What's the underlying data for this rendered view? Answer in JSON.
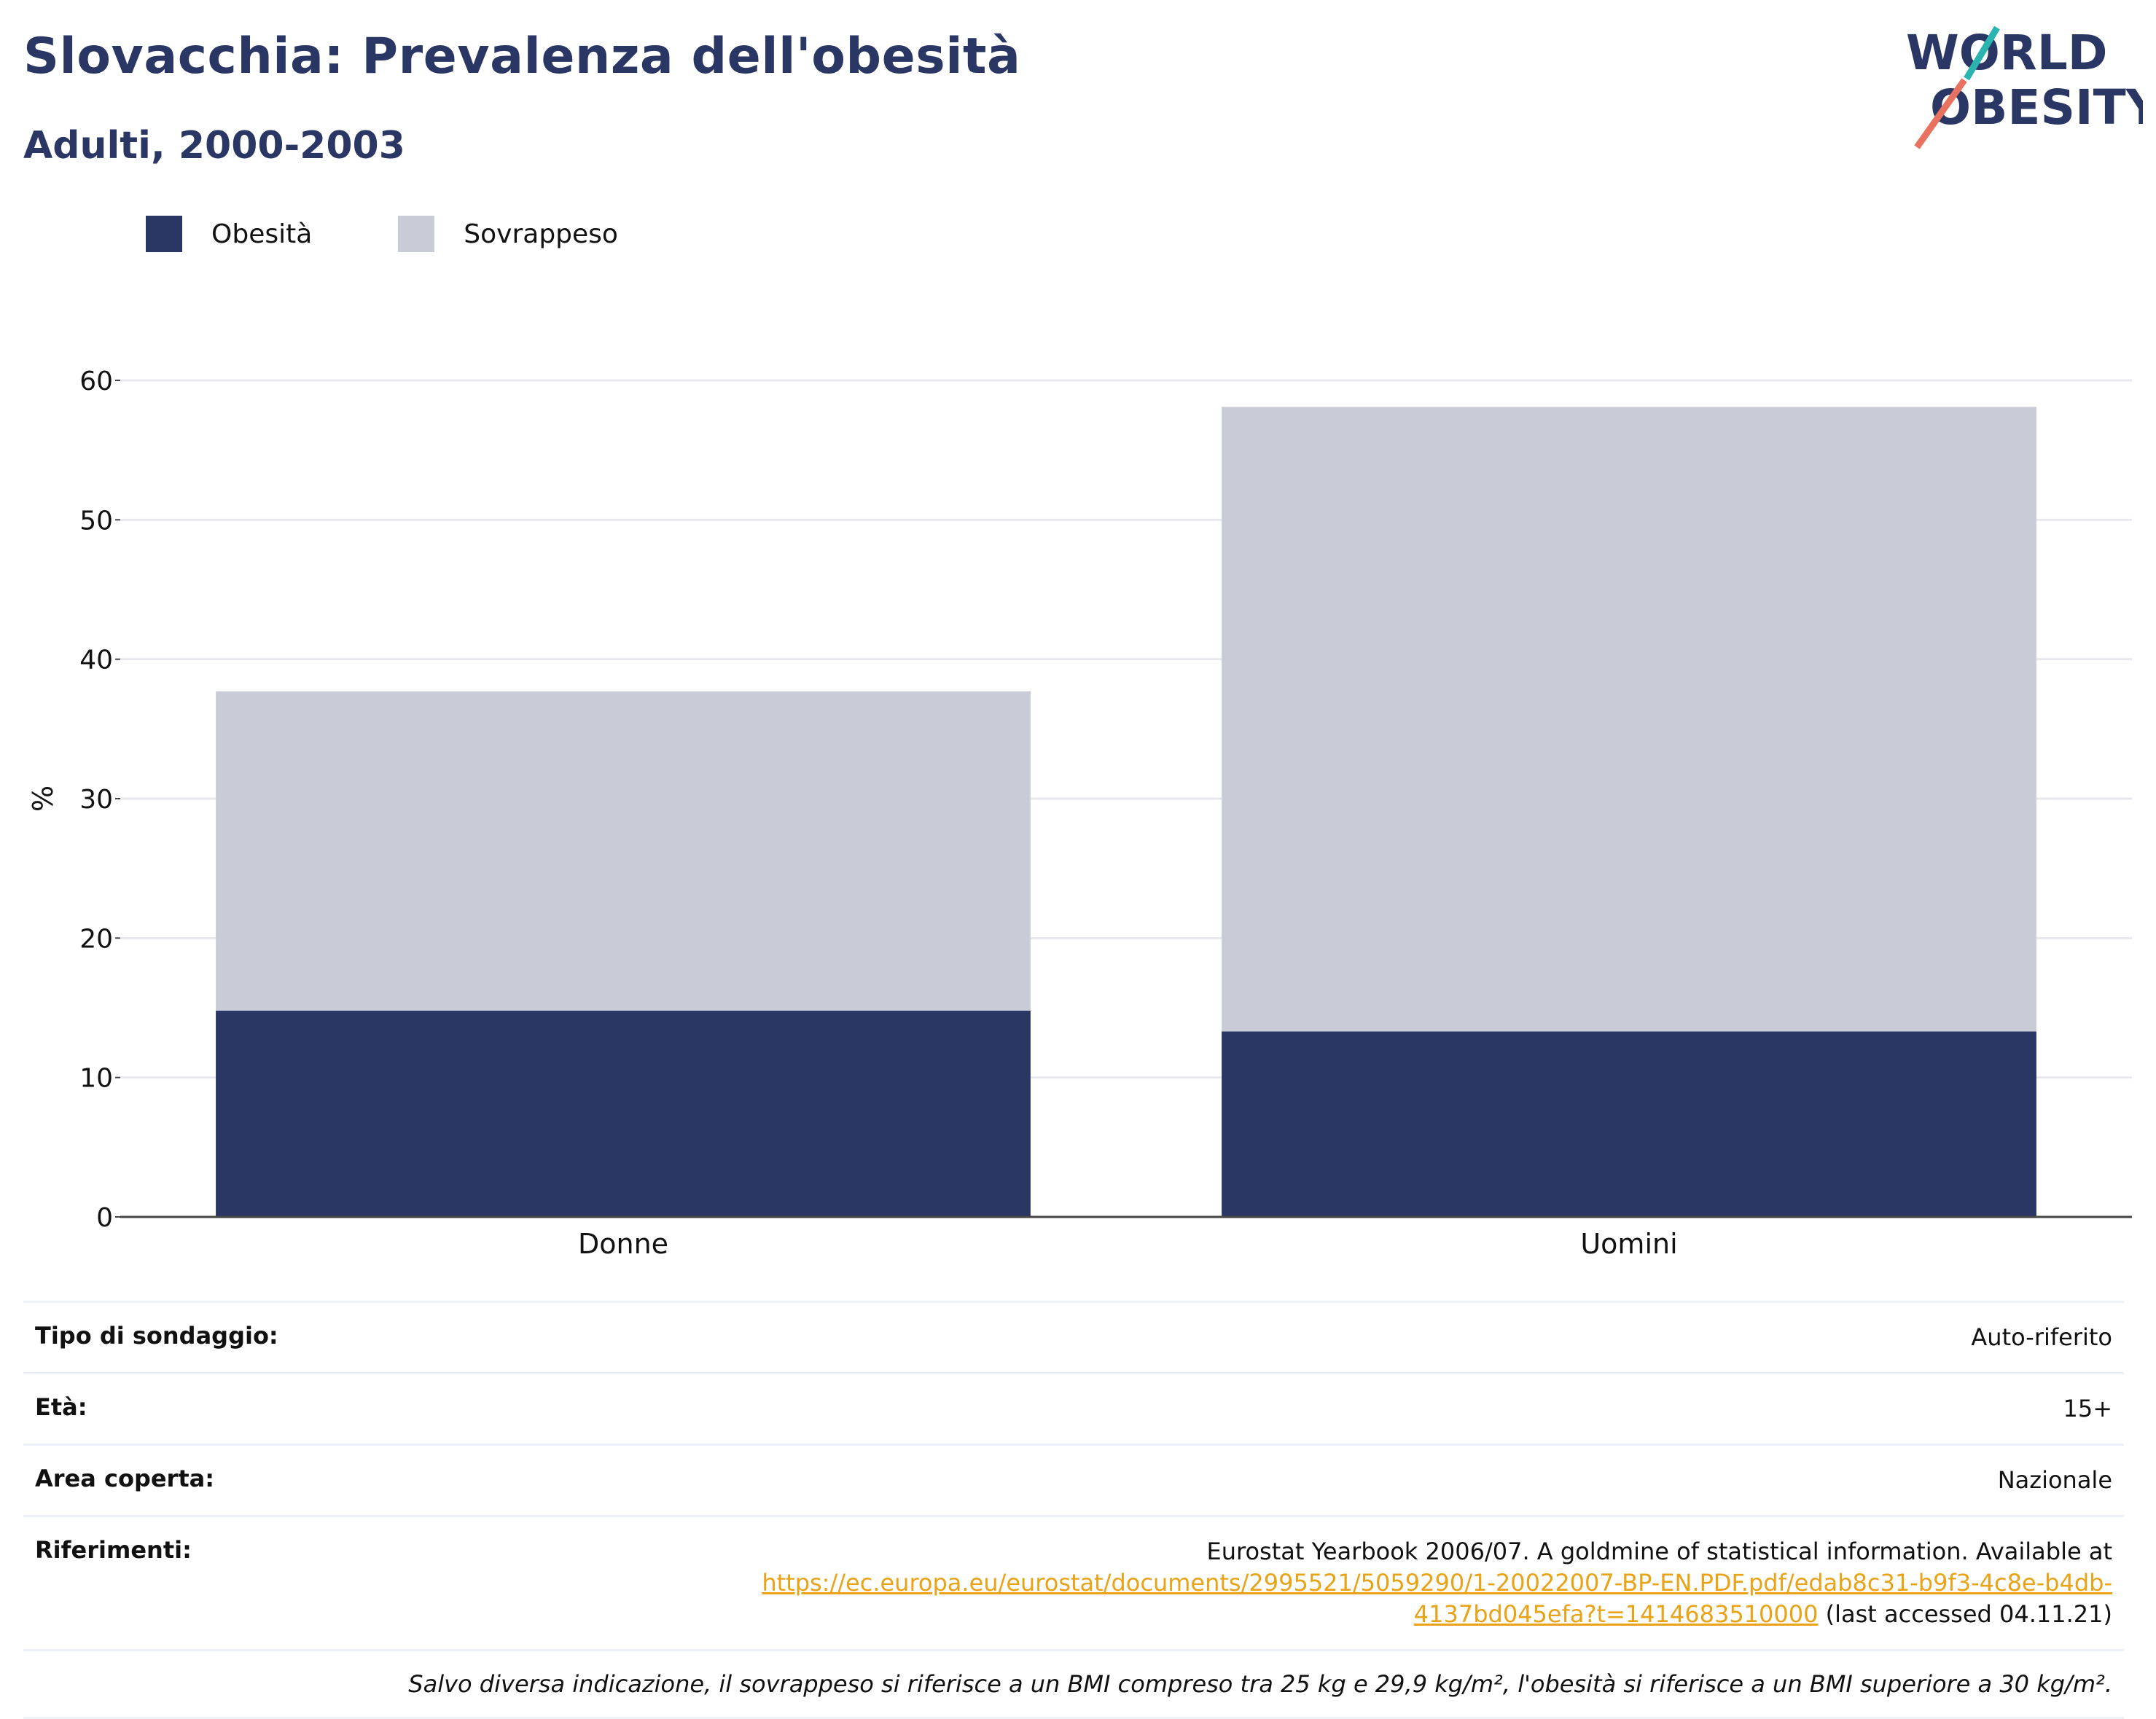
{
  "header": {
    "title": "Slovacchia: Prevalenza dell'obesità",
    "subtitle": "Adulti, 2000-2003"
  },
  "logo": {
    "line1": "WORLD",
    "line2": "OBESITY"
  },
  "legend": [
    {
      "label": "Obesità",
      "color": "#2a3664"
    },
    {
      "label": "Sovrappeso",
      "color": "#c9cbd6"
    }
  ],
  "chart_data": {
    "type": "bar",
    "stacked": true,
    "categories": [
      "Donne",
      "Uomini"
    ],
    "series": [
      {
        "name": "Obesità",
        "values": [
          14.8,
          13.3
        ],
        "color": "#2a3664"
      },
      {
        "name": "Sovrappeso",
        "values": [
          22.9,
          44.8
        ],
        "color": "#c9cbd6"
      }
    ],
    "ylabel": "%",
    "ylim": [
      0,
      60
    ],
    "yticks": [
      0,
      10,
      20,
      30,
      40,
      50,
      60
    ],
    "grid": true,
    "legend_position": "top-left"
  },
  "info": {
    "survey_label": "Tipo di sondaggio:",
    "survey_value": "Auto-riferito",
    "age_label": "Età:",
    "age_value": "15+",
    "area_label": "Area coperta:",
    "area_value": "Nazionale",
    "ref_label": "Riferimenti:",
    "ref_text": "Eurostat Yearbook 2006/07. A goldmine of statistical information. Available at",
    "ref_link_1": "https://ec.europa.eu/eurostat/documents/2995521/5059290/1-20022007-BP-EN.PDF.pdf/edab8c31-b9f3-4c8e-b4db-",
    "ref_link_2": "4137bd045efa?t=1414683510000",
    "ref_suffix": " (last accessed 04.11.21)",
    "note": "Salvo diversa indicazione, il sovrappeso si riferisce a un BMI compreso tra 25 kg e 29,9 kg/m², l'obesità si riferisce a un BMI superiore a 30 kg/m²."
  }
}
